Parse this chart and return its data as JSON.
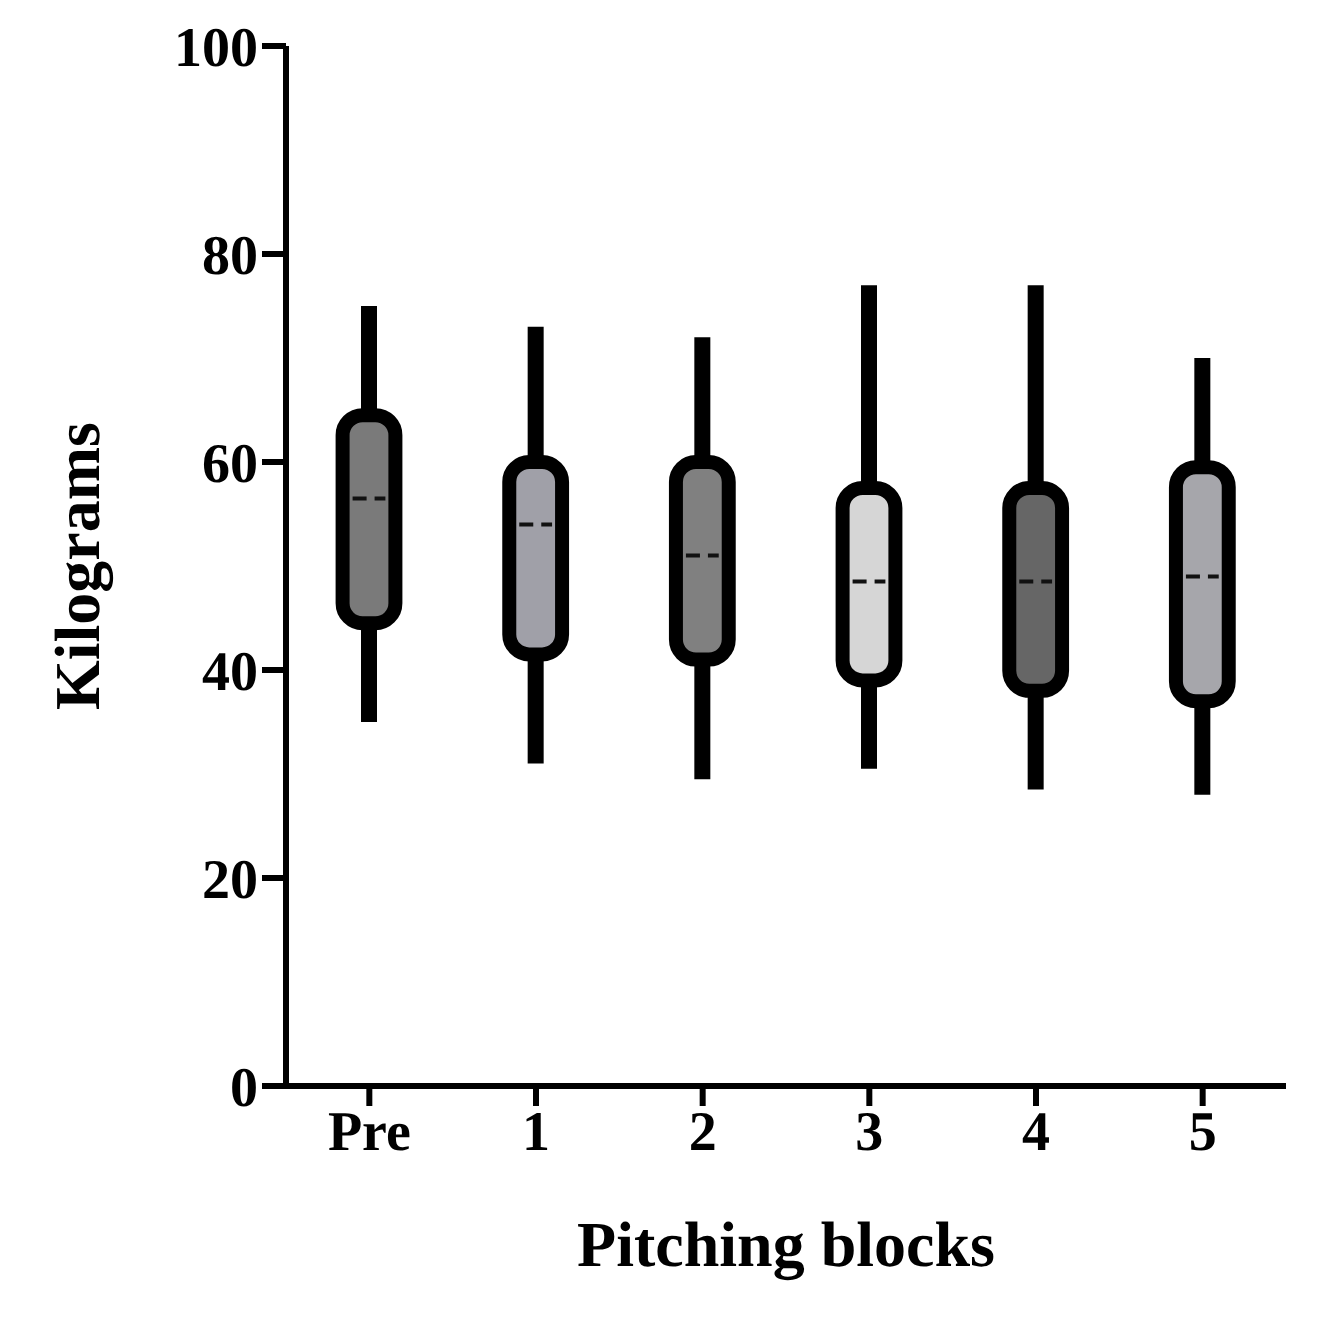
{
  "chart_data": {
    "type": "box",
    "xlabel": "Pitching blocks",
    "ylabel": "Kilograms",
    "categories": [
      "Pre",
      "1",
      "2",
      "3",
      "4",
      "5"
    ],
    "colors": [
      "#7a7a7a",
      "#a0a0a8",
      "#808080",
      "#d6d6d6",
      "#666666",
      "#a6a6ab"
    ],
    "boxes": [
      {
        "low": 35,
        "q1": 44.5,
        "median": 56.5,
        "q3": 64.5,
        "high": 75
      },
      {
        "low": 31,
        "q1": 41.5,
        "median": 54,
        "q3": 60,
        "high": 73
      },
      {
        "low": 29.5,
        "q1": 41,
        "median": 51,
        "q3": 60,
        "high": 72
      },
      {
        "low": 30.5,
        "q1": 39,
        "median": 48.5,
        "q3": 57.5,
        "high": 77
      },
      {
        "low": 28.5,
        "q1": 38,
        "median": 48.5,
        "q3": 57.5,
        "high": 77
      },
      {
        "low": 28,
        "q1": 37,
        "median": 49,
        "q3": 59.5,
        "high": 70
      }
    ],
    "ylim": [
      0,
      100
    ],
    "yticks": [
      0,
      20,
      40,
      60,
      80,
      100
    ],
    "grid": false,
    "legend": false
  }
}
